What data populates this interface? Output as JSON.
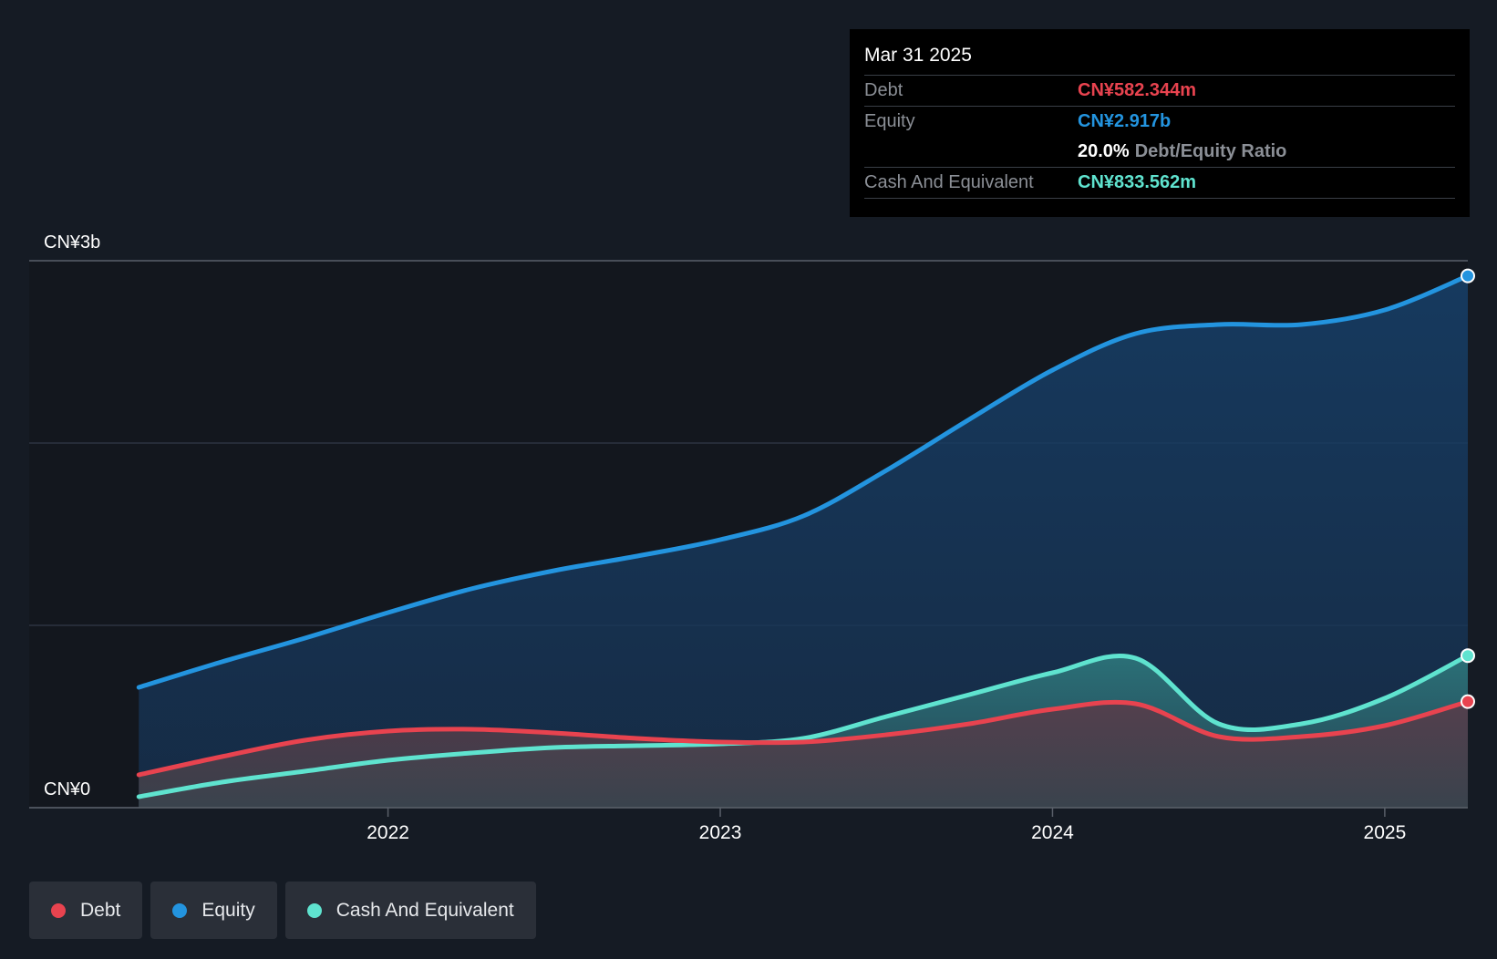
{
  "colors": {
    "background": "#151b24",
    "debt": "#e8434f",
    "equity": "#2394df",
    "cash": "#5fe3cf",
    "grid": "#3a4250",
    "axis_text": "#ffffff"
  },
  "tooltip": {
    "date": "Mar 31 2025",
    "debt_label": "Debt",
    "debt_value": "CN¥582.344m",
    "equity_label": "Equity",
    "equity_value": "CN¥2.917b",
    "ratio_value": "20.0%",
    "ratio_label": "Debt/Equity Ratio",
    "cash_label": "Cash And Equivalent",
    "cash_value": "CN¥833.562m"
  },
  "legend": {
    "debt": "Debt",
    "equity": "Equity",
    "cash": "Cash And Equivalent"
  },
  "chart_data": {
    "type": "area",
    "title": "",
    "xlabel": "",
    "ylabel": "",
    "y_axis_labels": [
      "CN¥3b",
      "CN¥0"
    ],
    "y_axis_label_values": [
      3.0,
      0.0
    ],
    "x_tick_labels": [
      "2022",
      "2023",
      "2024",
      "2025"
    ],
    "x_tick_values": [
      2022.0,
      2023.0,
      2024.0,
      2025.0
    ],
    "xlim": [
      2020.92,
      2025.25
    ],
    "ylim": [
      0,
      3.0
    ],
    "gridlines": [
      0,
      1.0,
      2.0,
      3.0
    ],
    "x": [
      2021.25,
      2021.5,
      2021.75,
      2022.0,
      2022.25,
      2022.5,
      2022.75,
      2023.0,
      2023.25,
      2023.5,
      2023.75,
      2024.0,
      2024.25,
      2024.5,
      2024.75,
      2025.0,
      2025.25
    ],
    "series": [
      {
        "name": "Equity",
        "values": [
          0.66,
          0.8,
          0.93,
          1.07,
          1.2,
          1.3,
          1.38,
          1.47,
          1.6,
          1.85,
          2.13,
          2.4,
          2.6,
          2.65,
          2.65,
          2.73,
          2.917
        ]
      },
      {
        "name": "Cash And Equivalent",
        "values": [
          0.06,
          0.14,
          0.2,
          0.26,
          0.3,
          0.33,
          0.34,
          0.35,
          0.38,
          0.5,
          0.62,
          0.74,
          0.82,
          0.46,
          0.46,
          0.6,
          0.834
        ]
      },
      {
        "name": "Debt",
        "values": [
          0.18,
          0.28,
          0.37,
          0.42,
          0.43,
          0.41,
          0.38,
          0.36,
          0.36,
          0.4,
          0.46,
          0.54,
          0.57,
          0.39,
          0.39,
          0.45,
          0.582
        ]
      }
    ]
  }
}
